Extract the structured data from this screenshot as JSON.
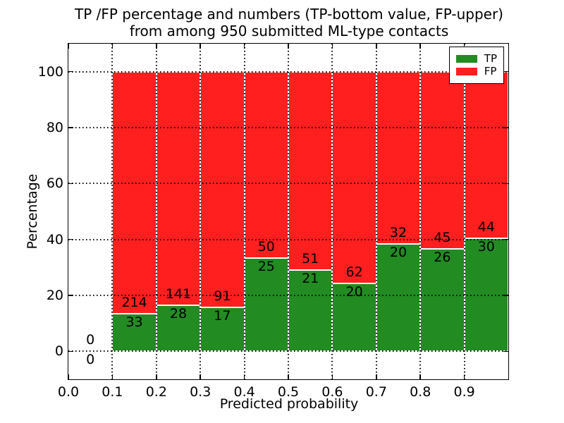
{
  "chart_data": {
    "type": "bar",
    "stacked": true,
    "title_line1": "TP /FP percentage and numbers (TP-bottom value, FP-upper)",
    "title_line2": "from among 950 submitted ML-type contacts",
    "xlabel": "Predicted probability",
    "ylabel": "Percentage",
    "xlim": [
      0.0,
      1.0
    ],
    "ylim": [
      -10,
      110
    ],
    "xtick_labels": [
      "0.0",
      "0.1",
      "0.2",
      "0.3",
      "0.4",
      "0.5",
      "0.6",
      "0.7",
      "0.8",
      "0.9"
    ],
    "ytick_values": [
      0,
      20,
      40,
      60,
      80,
      100
    ],
    "grid": {
      "style": "dotted",
      "color": "#000000",
      "drawn_over_bars": true
    },
    "total_submitted": 950,
    "colors": {
      "tp": "#228B22",
      "fp": "#FF1F1F",
      "bar_edge": "#ffffff"
    },
    "legend": {
      "position": "upper right",
      "entries": [
        {
          "label": "TP",
          "color": "#228B22"
        },
        {
          "label": "FP",
          "color": "#FF1F1F"
        }
      ]
    },
    "bins": [
      {
        "x_start": 0.0,
        "x_end": 0.1,
        "tp_count": 0,
        "fp_count": 0,
        "tp_percent": null,
        "has_bar": false
      },
      {
        "x_start": 0.1,
        "x_end": 0.2,
        "tp_count": 33,
        "fp_count": 214,
        "tp_percent": 13.36,
        "has_bar": true
      },
      {
        "x_start": 0.2,
        "x_end": 0.3,
        "tp_count": 28,
        "fp_count": 141,
        "tp_percent": 16.57,
        "has_bar": true
      },
      {
        "x_start": 0.3,
        "x_end": 0.4,
        "tp_count": 17,
        "fp_count": 91,
        "tp_percent": 15.74,
        "has_bar": true
      },
      {
        "x_start": 0.4,
        "x_end": 0.5,
        "tp_count": 25,
        "fp_count": 50,
        "tp_percent": 33.33,
        "has_bar": true
      },
      {
        "x_start": 0.5,
        "x_end": 0.6,
        "tp_count": 21,
        "fp_count": 51,
        "tp_percent": 29.17,
        "has_bar": true
      },
      {
        "x_start": 0.6,
        "x_end": 0.7,
        "tp_count": 20,
        "fp_count": 62,
        "tp_percent": 24.39,
        "has_bar": true
      },
      {
        "x_start": 0.7,
        "x_end": 0.8,
        "tp_count": 20,
        "fp_count": 32,
        "tp_percent": 38.46,
        "has_bar": true
      },
      {
        "x_start": 0.8,
        "x_end": 0.9,
        "tp_count": 26,
        "fp_count": 45,
        "tp_percent": 36.62,
        "has_bar": true
      },
      {
        "x_start": 0.9,
        "x_end": 1.0,
        "tp_count": 30,
        "fp_count": 44,
        "tp_percent": 40.54,
        "has_bar": true
      }
    ]
  }
}
